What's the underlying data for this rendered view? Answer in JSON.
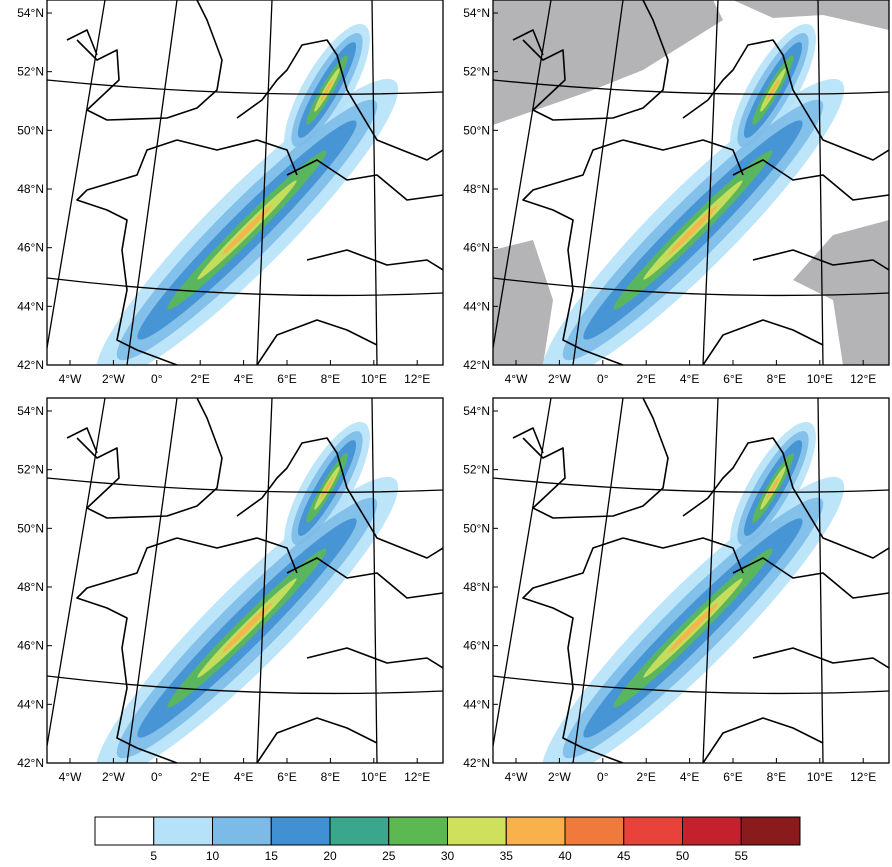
{
  "panels": [
    {
      "lat_labels": [
        "54°N",
        "52°N",
        "50°N",
        "48°N",
        "46°N",
        "44°N",
        "42°N"
      ],
      "lon_labels": [
        "4°W",
        "2°W",
        "0°",
        "2°E",
        "4°E",
        "6°E",
        "8°E",
        "10°E",
        "12°E"
      ]
    },
    {
      "lat_labels": [
        "54°N",
        "52°N",
        "50°N",
        "48°N",
        "46°N",
        "44°N",
        "42°N"
      ],
      "lon_labels": [
        "4°W",
        "2°W",
        "0°",
        "2°E",
        "4°E",
        "6°E",
        "8°E",
        "10°E",
        "12°E"
      ]
    },
    {
      "lat_labels": [
        "54°N",
        "52°N",
        "50°N",
        "48°N",
        "46°N",
        "44°N",
        "42°N"
      ],
      "lon_labels": [
        "4°W",
        "2°W",
        "0°",
        "2°E",
        "4°E",
        "6°E",
        "8°E",
        "10°E",
        "12°E"
      ]
    },
    {
      "lat_labels": [
        "54°N",
        "52°N",
        "50°N",
        "48°N",
        "46°N",
        "44°N",
        "42°N"
      ],
      "lon_labels": [
        "4°W",
        "2°W",
        "0°",
        "2°E",
        "4°E",
        "6°E",
        "8°E",
        "10°E",
        "12°E"
      ]
    }
  ],
  "colorbar": {
    "colors": [
      "#ffffff",
      "#b5e2f8",
      "#7cbbe8",
      "#4090d2",
      "#3aa68c",
      "#5cb951",
      "#cfe15c",
      "#f8b14b",
      "#ef7a3b",
      "#e7433a",
      "#c3222d",
      "#8a1b1c"
    ],
    "labels": [
      5,
      10,
      15,
      20,
      25,
      30,
      35,
      40,
      45,
      50,
      55
    ]
  }
}
